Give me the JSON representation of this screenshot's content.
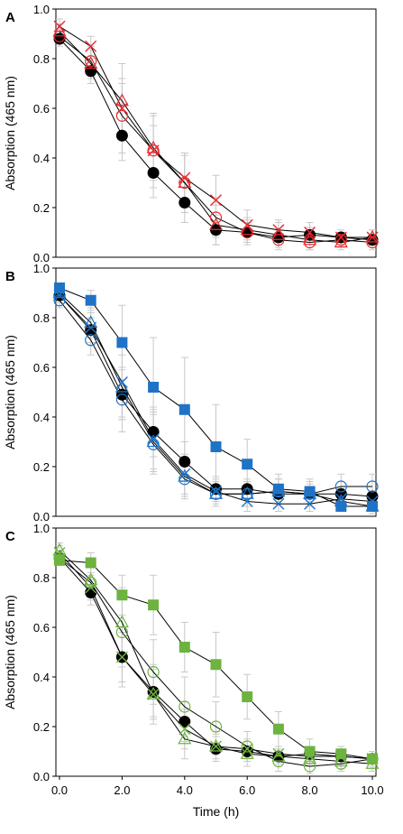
{
  "chart_data": [
    {
      "type": "line",
      "panel_label": "A",
      "ylabel": "Absorption (465 nm)",
      "xlabel": "",
      "xlim": [
        0,
        10
      ],
      "ylim": [
        0,
        1.0
      ],
      "yticks": [
        "0.0",
        "0.2",
        "0.4",
        "0.6",
        "0.8",
        "1.0"
      ],
      "xticks": [],
      "grid": false,
      "legend": "none",
      "x": [
        0,
        1,
        2,
        3,
        4,
        5,
        6,
        7,
        8,
        9,
        10
      ],
      "series": [
        {
          "marker": "filled-circle",
          "color": "#000000",
          "values": [
            0.88,
            0.75,
            0.49,
            0.34,
            0.22,
            0.11,
            0.1,
            0.08,
            0.09,
            0.08,
            0.07
          ],
          "errors": [
            0.03,
            0.05,
            0.1,
            0.1,
            0.08,
            0.06,
            0.04,
            0.03,
            0.03,
            0.02,
            0.02
          ]
        },
        {
          "marker": "open-circle",
          "color": "#e8292e",
          "values": [
            0.89,
            0.79,
            0.57,
            0.43,
            0.3,
            0.16,
            0.1,
            0.07,
            0.06,
            0.07,
            0.06
          ],
          "errors": [
            0.03,
            0.06,
            0.15,
            0.15,
            0.12,
            0.08,
            0.05,
            0.04,
            0.03,
            0.03,
            0.03
          ]
        },
        {
          "marker": "open-triangle",
          "color": "#e8292e",
          "values": [
            0.91,
            0.78,
            0.63,
            0.44,
            0.3,
            0.13,
            0.11,
            0.09,
            0.07,
            0.06,
            0.08
          ],
          "errors": [
            0.03,
            0.06,
            0.15,
            0.13,
            0.12,
            0.08,
            0.05,
            0.05,
            0.04,
            0.03,
            0.03
          ]
        },
        {
          "marker": "x",
          "color": "#e8292e",
          "values": [
            0.93,
            0.85,
            0.6,
            0.43,
            0.32,
            0.23,
            0.13,
            0.11,
            0.1,
            0.08,
            0.08
          ],
          "errors": [
            0.03,
            0.04,
            0.1,
            0.1,
            0.09,
            0.1,
            0.06,
            0.04,
            0.04,
            0.03,
            0.03
          ]
        }
      ]
    },
    {
      "type": "line",
      "panel_label": "B",
      "ylabel": "Absorption (465 nm)",
      "xlabel": "",
      "xlim": [
        0,
        10
      ],
      "ylim": [
        0,
        1.0
      ],
      "yticks": [
        "0.0",
        "0.2",
        "0.4",
        "0.6",
        "0.8",
        "1.0"
      ],
      "xticks": [],
      "grid": false,
      "legend": "none",
      "x": [
        0,
        1,
        2,
        3,
        4,
        5,
        6,
        7,
        8,
        9,
        10
      ],
      "series": [
        {
          "marker": "filled-circle",
          "color": "#000000",
          "values": [
            0.89,
            0.75,
            0.49,
            0.34,
            0.22,
            0.11,
            0.11,
            0.09,
            0.09,
            0.09,
            0.08
          ],
          "errors": [
            0.03,
            0.05,
            0.1,
            0.1,
            0.08,
            0.05,
            0.04,
            0.03,
            0.03,
            0.02,
            0.02
          ]
        },
        {
          "marker": "filled-square",
          "color": "#1f73c6",
          "values": [
            0.92,
            0.87,
            0.7,
            0.52,
            0.43,
            0.28,
            0.21,
            0.11,
            0.1,
            0.04,
            0.04
          ],
          "errors": [
            0.02,
            0.04,
            0.15,
            0.2,
            0.21,
            0.17,
            0.1,
            0.06,
            0.05,
            0.02,
            0.02
          ]
        },
        {
          "marker": "open-circle",
          "color": "#1f73c6",
          "values": [
            0.87,
            0.71,
            0.47,
            0.29,
            0.15,
            0.09,
            0.09,
            0.1,
            0.09,
            0.12,
            0.12
          ],
          "errors": [
            0.03,
            0.06,
            0.13,
            0.12,
            0.08,
            0.05,
            0.05,
            0.05,
            0.05,
            0.05,
            0.05
          ]
        },
        {
          "marker": "open-triangle",
          "color": "#1f73c6",
          "values": [
            0.9,
            0.78,
            0.52,
            0.3,
            0.16,
            0.09,
            0.09,
            0.1,
            0.09,
            0.06,
            0.04
          ],
          "errors": [
            0.03,
            0.06,
            0.13,
            0.12,
            0.08,
            0.05,
            0.05,
            0.05,
            0.04,
            0.03,
            0.03
          ]
        },
        {
          "marker": "x",
          "color": "#1f73c6",
          "values": [
            0.89,
            0.76,
            0.54,
            0.31,
            0.17,
            0.1,
            0.06,
            0.05,
            0.05,
            0.07,
            0.06
          ],
          "errors": [
            0.03,
            0.06,
            0.14,
            0.12,
            0.08,
            0.05,
            0.04,
            0.03,
            0.03,
            0.03,
            0.03
          ]
        }
      ]
    },
    {
      "type": "line",
      "panel_label": "C",
      "ylabel": "Absorption (465 nm)",
      "xlabel": "Time (h)",
      "xlim": [
        0,
        10
      ],
      "ylim": [
        0,
        1.0
      ],
      "yticks": [
        "0.0",
        "0.2",
        "0.4",
        "0.6",
        "0.8",
        "1.0"
      ],
      "xticks": [
        "0.0",
        "2.0",
        "4.0",
        "6.0",
        "8.0",
        "10.0"
      ],
      "grid": false,
      "legend": "none",
      "x": [
        0,
        1,
        2,
        3,
        4,
        5,
        6,
        7,
        8,
        9,
        10
      ],
      "series": [
        {
          "marker": "filled-circle",
          "color": "#000000",
          "values": [
            0.88,
            0.74,
            0.48,
            0.34,
            0.22,
            0.11,
            0.1,
            0.08,
            0.09,
            0.08,
            0.07
          ],
          "errors": [
            0.03,
            0.05,
            0.1,
            0.1,
            0.08,
            0.05,
            0.04,
            0.03,
            0.03,
            0.02,
            0.02
          ]
        },
        {
          "marker": "filled-square",
          "color": "#6db33f",
          "values": [
            0.87,
            0.86,
            0.73,
            0.69,
            0.52,
            0.45,
            0.32,
            0.19,
            0.1,
            0.09,
            0.07
          ],
          "errors": [
            0.02,
            0.04,
            0.08,
            0.12,
            0.1,
            0.13,
            0.09,
            0.07,
            0.05,
            0.03,
            0.03
          ]
        },
        {
          "marker": "open-circle",
          "color": "#6db33f",
          "values": [
            0.88,
            0.78,
            0.58,
            0.42,
            0.28,
            0.2,
            0.12,
            0.06,
            0.04,
            0.05,
            0.07
          ],
          "errors": [
            0.03,
            0.06,
            0.14,
            0.13,
            0.12,
            0.1,
            0.06,
            0.04,
            0.03,
            0.03,
            0.03
          ]
        },
        {
          "marker": "open-triangle",
          "color": "#6db33f",
          "values": [
            0.91,
            0.79,
            0.62,
            0.33,
            0.15,
            0.12,
            0.09,
            0.08,
            0.07,
            0.06,
            0.05
          ],
          "errors": [
            0.03,
            0.06,
            0.14,
            0.12,
            0.08,
            0.06,
            0.05,
            0.04,
            0.03,
            0.03,
            0.03
          ]
        },
        {
          "marker": "x",
          "color": "#6db33f",
          "values": [
            0.9,
            0.76,
            0.48,
            0.33,
            0.19,
            0.12,
            0.11,
            0.09,
            0.08,
            0.08,
            0.07
          ],
          "errors": [
            0.03,
            0.05,
            0.12,
            0.1,
            0.08,
            0.05,
            0.04,
            0.03,
            0.03,
            0.03,
            0.03
          ]
        }
      ]
    }
  ]
}
